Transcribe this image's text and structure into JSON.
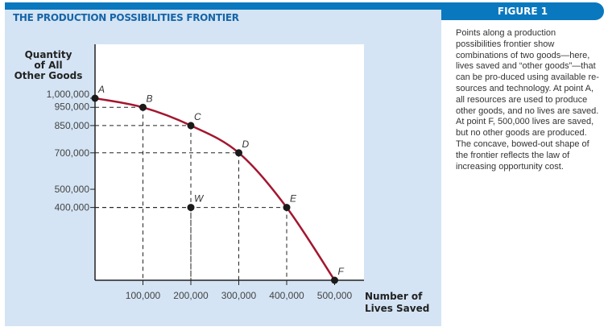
{
  "figure_label": "FIGURE 1",
  "caption": "Points along a production possibilities frontier show combinations of two goods—here, lives saved and “other goods”—that can be pro-duced using available re-sources and technology. At point A, all resources are used to produce other goods, and no lives are saved. At point F, 500,000 lives are saved, but no other goods are produced. The concave, bowed-out shape of the frontier reflects the law of increasing opportunity cost.",
  "colors": {
    "frame": "#0a78be",
    "panel": "#d4e4f4",
    "curve": "#a3162f",
    "title": "#1565a8"
  },
  "chart_data": {
    "type": "line",
    "title": "THE PRODUCTION POSSIBILITIES FRONTIER",
    "ylabel": [
      "Quantity",
      "of All",
      "Other Goods"
    ],
    "xlabel": [
      "Number of",
      "Lives Saved"
    ],
    "x_ticks": [
      "100,000",
      "200,000",
      "300,000",
      "400,000",
      "500,000"
    ],
    "x_tick_values": [
      100000,
      200000,
      300000,
      400000,
      500000
    ],
    "y_ticks": [
      "1,000,000",
      "950,000",
      "850,000",
      "700,000",
      "500,000",
      "400,000"
    ],
    "y_tick_values": [
      1000000,
      950000,
      850000,
      700000,
      500000,
      400000
    ],
    "xlim": [
      0,
      560000
    ],
    "ylim": [
      0,
      1300000
    ],
    "grid": "dashed guide lines to labeled points",
    "points": [
      {
        "label": "A",
        "x": 0,
        "y": 1000000,
        "on_frontier": true
      },
      {
        "label": "B",
        "x": 100000,
        "y": 950000,
        "on_frontier": true
      },
      {
        "label": "C",
        "x": 200000,
        "y": 850000,
        "on_frontier": true
      },
      {
        "label": "D",
        "x": 300000,
        "y": 700000,
        "on_frontier": true
      },
      {
        "label": "E",
        "x": 400000,
        "y": 400000,
        "on_frontier": true
      },
      {
        "label": "F",
        "x": 500000,
        "y": 0,
        "on_frontier": true
      },
      {
        "label": "W",
        "x": 200000,
        "y": 400000,
        "on_frontier": false
      }
    ]
  }
}
